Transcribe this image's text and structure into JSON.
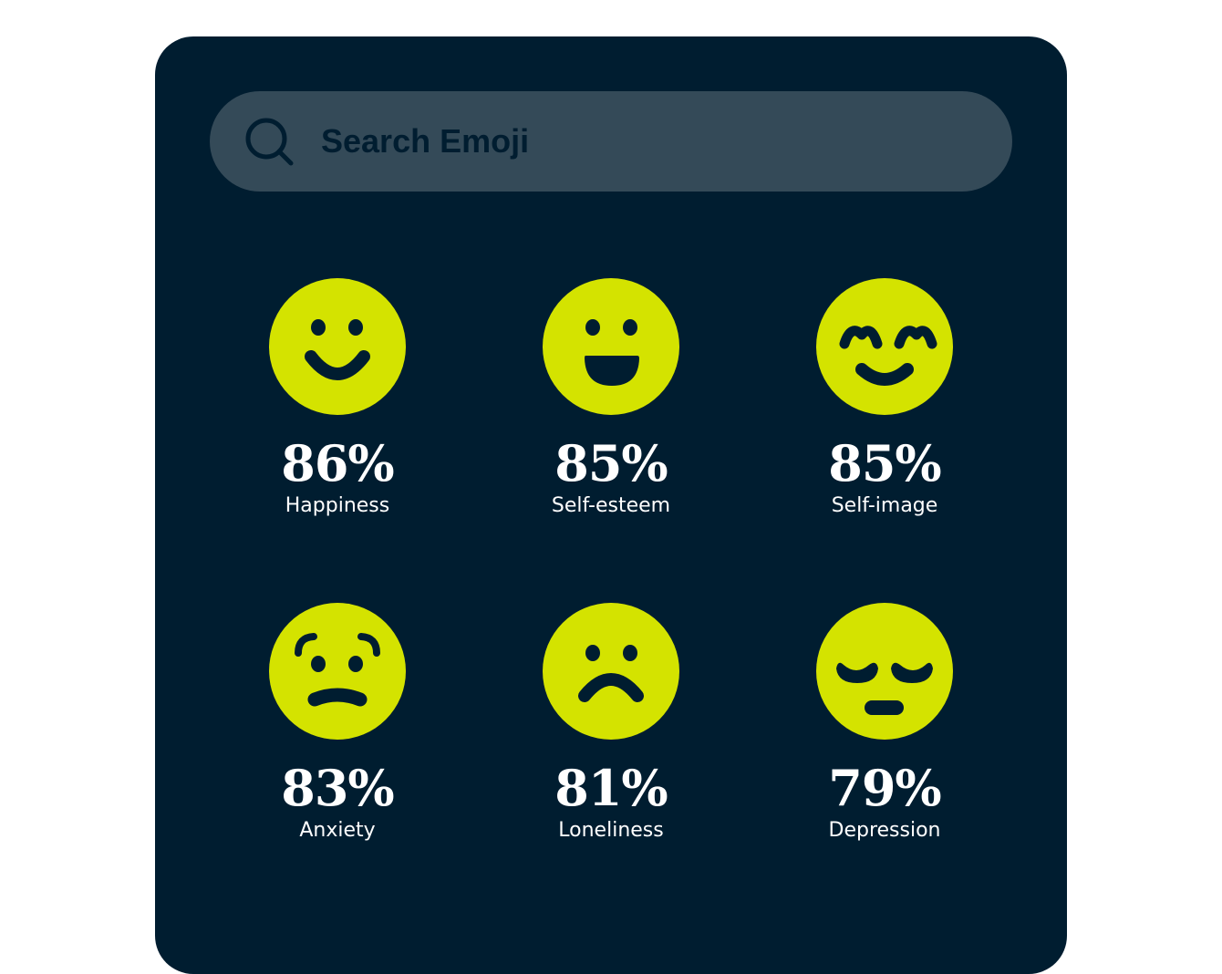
{
  "search": {
    "placeholder": "Search Emoji",
    "icon": "search-icon"
  },
  "colors": {
    "background": "#001d30",
    "search_bar": "#344a58",
    "face": "#d4e300",
    "text": "#ffffff"
  },
  "emojis": [
    {
      "icon": "smiling-face-icon",
      "percent": "86%",
      "label": "Happiness"
    },
    {
      "icon": "grinning-face-icon",
      "percent": "85%",
      "label": "Self-esteem"
    },
    {
      "icon": "smiling-closed-eyes-face-icon",
      "percent": "85%",
      "label": "Self-image"
    },
    {
      "icon": "anxious-face-icon",
      "percent": "83%",
      "label": "Anxiety"
    },
    {
      "icon": "frowning-face-icon",
      "percent": "81%",
      "label": "Loneliness"
    },
    {
      "icon": "pensive-face-icon",
      "percent": "79%",
      "label": "Depression"
    }
  ]
}
